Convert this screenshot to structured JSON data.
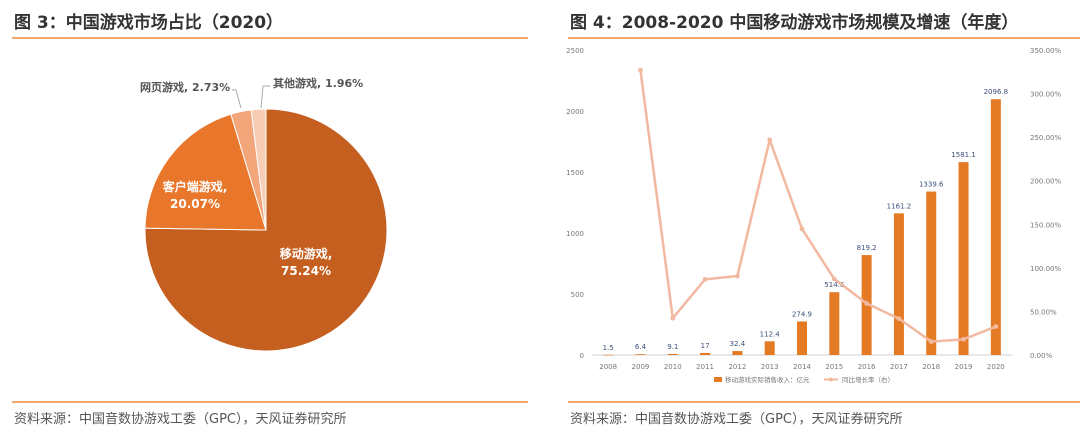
{
  "left": {
    "title": "图 3：中国游戏市场占比（2020）",
    "source": "资料来源：中国音数协游戏工委（GPC），天风证券研究所"
  },
  "right": {
    "title": "图 4：2008-2020 中国移动游戏市场规模及增速（年度）",
    "source": "资料来源：中国音数协游戏工委（GPC），天风证券研究所"
  },
  "chart_data": [
    {
      "type": "pie",
      "slices": [
        {
          "label": "移动游戏,",
          "value_label": "75.24%",
          "value": 75.24,
          "color": "#c55f1f"
        },
        {
          "label": "客户端游戏,",
          "value_label": "20.07%",
          "value": 20.07,
          "color": "#e8772b"
        },
        {
          "label": "网页游戏, 2.73%",
          "value": 2.73,
          "color": "#f3a67a"
        },
        {
          "label": "其他游戏, 1.96%",
          "value": 1.96,
          "color": "#f8cdb6"
        }
      ]
    },
    {
      "type": "bar",
      "categories": [
        "2008",
        "2009",
        "2010",
        "2011",
        "2012",
        "2013",
        "2014",
        "2015",
        "2016",
        "2017",
        "2018",
        "2019",
        "2020"
      ],
      "series": [
        {
          "name": "移动游戏实际销售收入：亿元",
          "kind": "bar",
          "axis": "left",
          "color": "#e57a25",
          "values": [
            1.5,
            6.4,
            9.1,
            17,
            32.4,
            112.4,
            274.9,
            514.6,
            819.2,
            1161.2,
            1339.6,
            1581.1,
            2096.8
          ],
          "value_labels": [
            "1.5",
            "6.4",
            "9.1",
            "17",
            "32.4",
            "112.4",
            "274.9",
            "514.6",
            "819.2",
            "1161.2",
            "1339.6",
            "1581.1",
            "2096.8"
          ]
        },
        {
          "name": "同比增长率（右）",
          "kind": "line",
          "axis": "right",
          "color": "#f2b9a0",
          "values": [
            null,
            326.7,
            42.2,
            86.8,
            90.6,
            246.9,
            144.6,
            87.2,
            59.2,
            41.7,
            15.4,
            18.0,
            32.6
          ]
        }
      ],
      "y_left_ticks": [
        "0",
        "500",
        "1000",
        "1500",
        "2000",
        "2500"
      ],
      "y_left_range": [
        0,
        2500
      ],
      "y_right_ticks": [
        "0.00%",
        "50.00%",
        "100.00%",
        "150.00%",
        "200.00%",
        "250.00%",
        "300.00%",
        "350.00%"
      ],
      "y_right_range": [
        0,
        350
      ],
      "legend_position": "bottom",
      "grid": false
    }
  ]
}
